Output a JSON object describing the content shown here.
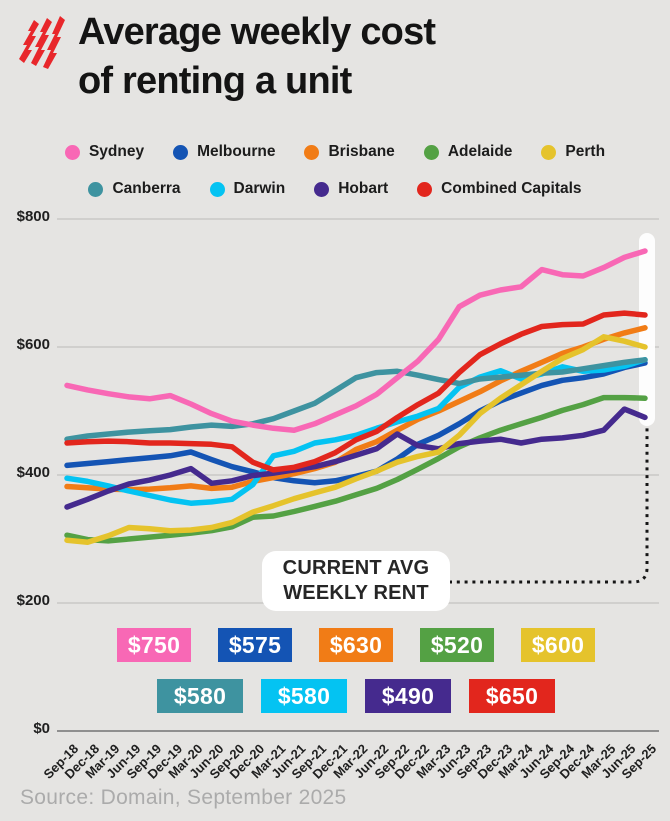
{
  "header": {
    "title_line1": "Average weekly cost",
    "title_line2": "of renting a unit",
    "logo": "sbs-logo",
    "logo_color": "#e8272b"
  },
  "annotation": {
    "line1": "CURRENT AVG",
    "line2": "WEEKLY RENT"
  },
  "source": {
    "text": "Source: Domain, September 2025"
  },
  "chart_data": {
    "type": "line",
    "title": "Average weekly cost of renting a unit",
    "ylim": [
      0,
      800
    ],
    "grid": "horizontal",
    "legend_position": "top-center",
    "y_ticks": [
      {
        "label": "$800",
        "value": 800
      },
      {
        "label": "$600",
        "value": 600
      },
      {
        "label": "$400",
        "value": 400
      },
      {
        "label": "$200",
        "value": 200
      },
      {
        "label": "$0",
        "value": 0
      }
    ],
    "x_labels": [
      "Sep-18",
      "Dec-18",
      "Mar-19",
      "Jun-19",
      "Sep-19",
      "Dec-19",
      "Mar-20",
      "Jun-20",
      "Sep-20",
      "Dec-20",
      "Mar-21",
      "Jun-21",
      "Sep-21",
      "Dec-21",
      "Mar-22",
      "Jun-22",
      "Sep-22",
      "Dec-22",
      "Mar-23",
      "Jun-23",
      "Sep-23",
      "Dec-23",
      "Mar-24",
      "Jun-24",
      "Sep-24",
      "Dec-24",
      "Mar-25",
      "Jun-25",
      "Sep-25"
    ],
    "series": [
      {
        "slug": "sydney",
        "name": "Sydney",
        "color": "#f868b5",
        "current": "$750",
        "values": [
          540,
          533,
          527,
          522,
          519,
          524,
          511,
          496,
          484,
          478,
          473,
          470,
          480,
          494,
          508,
          526,
          552,
          578,
          612,
          663,
          681,
          689,
          694,
          721,
          713,
          711,
          724,
          740,
          750
        ]
      },
      {
        "slug": "melbourne",
        "name": "Melbourne",
        "color": "#1454b4",
        "current": "$575",
        "values": [
          415,
          418,
          421,
          424,
          427,
          430,
          436,
          424,
          413,
          405,
          396,
          391,
          388,
          391,
          398,
          406,
          425,
          448,
          462,
          480,
          500,
          516,
          528,
          540,
          548,
          552,
          558,
          568,
          575
        ]
      },
      {
        "slug": "brisbane",
        "name": "Brisbane",
        "color": "#f17c16",
        "current": "$630",
        "values": [
          382,
          380,
          378,
          377,
          378,
          380,
          383,
          379,
          381,
          390,
          396,
          402,
          410,
          420,
          440,
          452,
          470,
          487,
          500,
          515,
          530,
          547,
          562,
          576,
          590,
          600,
          612,
          622,
          630
        ]
      },
      {
        "slug": "adelaide",
        "name": "Adelaide",
        "color": "#54a144",
        "current": "$520",
        "values": [
          306,
          299,
          297,
          300,
          303,
          306,
          309,
          313,
          319,
          334,
          336,
          343,
          351,
          359,
          369,
          379,
          393,
          409,
          426,
          444,
          458,
          470,
          480,
          490,
          501,
          510,
          521,
          521,
          520
        ]
      },
      {
        "slug": "perth",
        "name": "Perth",
        "color": "#e5c32c",
        "current": "$600",
        "values": [
          298,
          295,
          305,
          318,
          316,
          313,
          314,
          318,
          326,
          342,
          352,
          363,
          372,
          381,
          394,
          406,
          420,
          429,
          436,
          462,
          496,
          520,
          541,
          562,
          582,
          596,
          616,
          609,
          600
        ]
      },
      {
        "slug": "canberra",
        "name": "Canberra",
        "color": "#3e93a0",
        "current": "$580",
        "values": [
          456,
          461,
          464,
          467,
          469,
          471,
          475,
          478,
          476,
          480,
          488,
          500,
          512,
          532,
          552,
          560,
          562,
          556,
          549,
          543,
          550,
          553,
          556,
          559,
          561,
          566,
          571,
          576,
          580
        ]
      },
      {
        "slug": "darwin",
        "name": "Darwin",
        "color": "#04c3f2",
        "current": "$580",
        "values": [
          395,
          390,
          383,
          375,
          368,
          361,
          356,
          358,
          362,
          385,
          430,
          437,
          450,
          455,
          462,
          473,
          483,
          492,
          504,
          537,
          553,
          563,
          550,
          558,
          569,
          562,
          564,
          570,
          580
        ]
      },
      {
        "slug": "hobart",
        "name": "Hobart",
        "color": "#452a8e",
        "current": "$490",
        "values": [
          350,
          362,
          375,
          386,
          392,
          400,
          410,
          387,
          391,
          399,
          403,
          408,
          413,
          421,
          431,
          441,
          464,
          446,
          441,
          449,
          453,
          456,
          450,
          456,
          458,
          462,
          470,
          503,
          490
        ]
      },
      {
        "slug": "combined-capitals",
        "name": "Combined Capitals",
        "color": "#e2261d",
        "current": "$650",
        "values": [
          450,
          452,
          453,
          452,
          450,
          450,
          449,
          448,
          444,
          420,
          408,
          412,
          421,
          435,
          455,
          468,
          490,
          510,
          528,
          560,
          588,
          605,
          620,
          632,
          635,
          636,
          650,
          653,
          650
        ]
      }
    ],
    "legend_rows": [
      [
        0,
        1,
        2,
        3,
        4
      ],
      [
        5,
        6,
        7,
        8
      ]
    ],
    "badge_rows": [
      [
        0,
        1,
        2,
        3,
        4
      ],
      [
        5,
        6,
        7,
        8
      ]
    ],
    "colors": {
      "background": "#e5e4e2",
      "gridline": "#c9c8c6",
      "axis_line": "#8f8f8f",
      "dotted_connector": "#151515",
      "endpoint_highlight": "#ffffff"
    }
  }
}
